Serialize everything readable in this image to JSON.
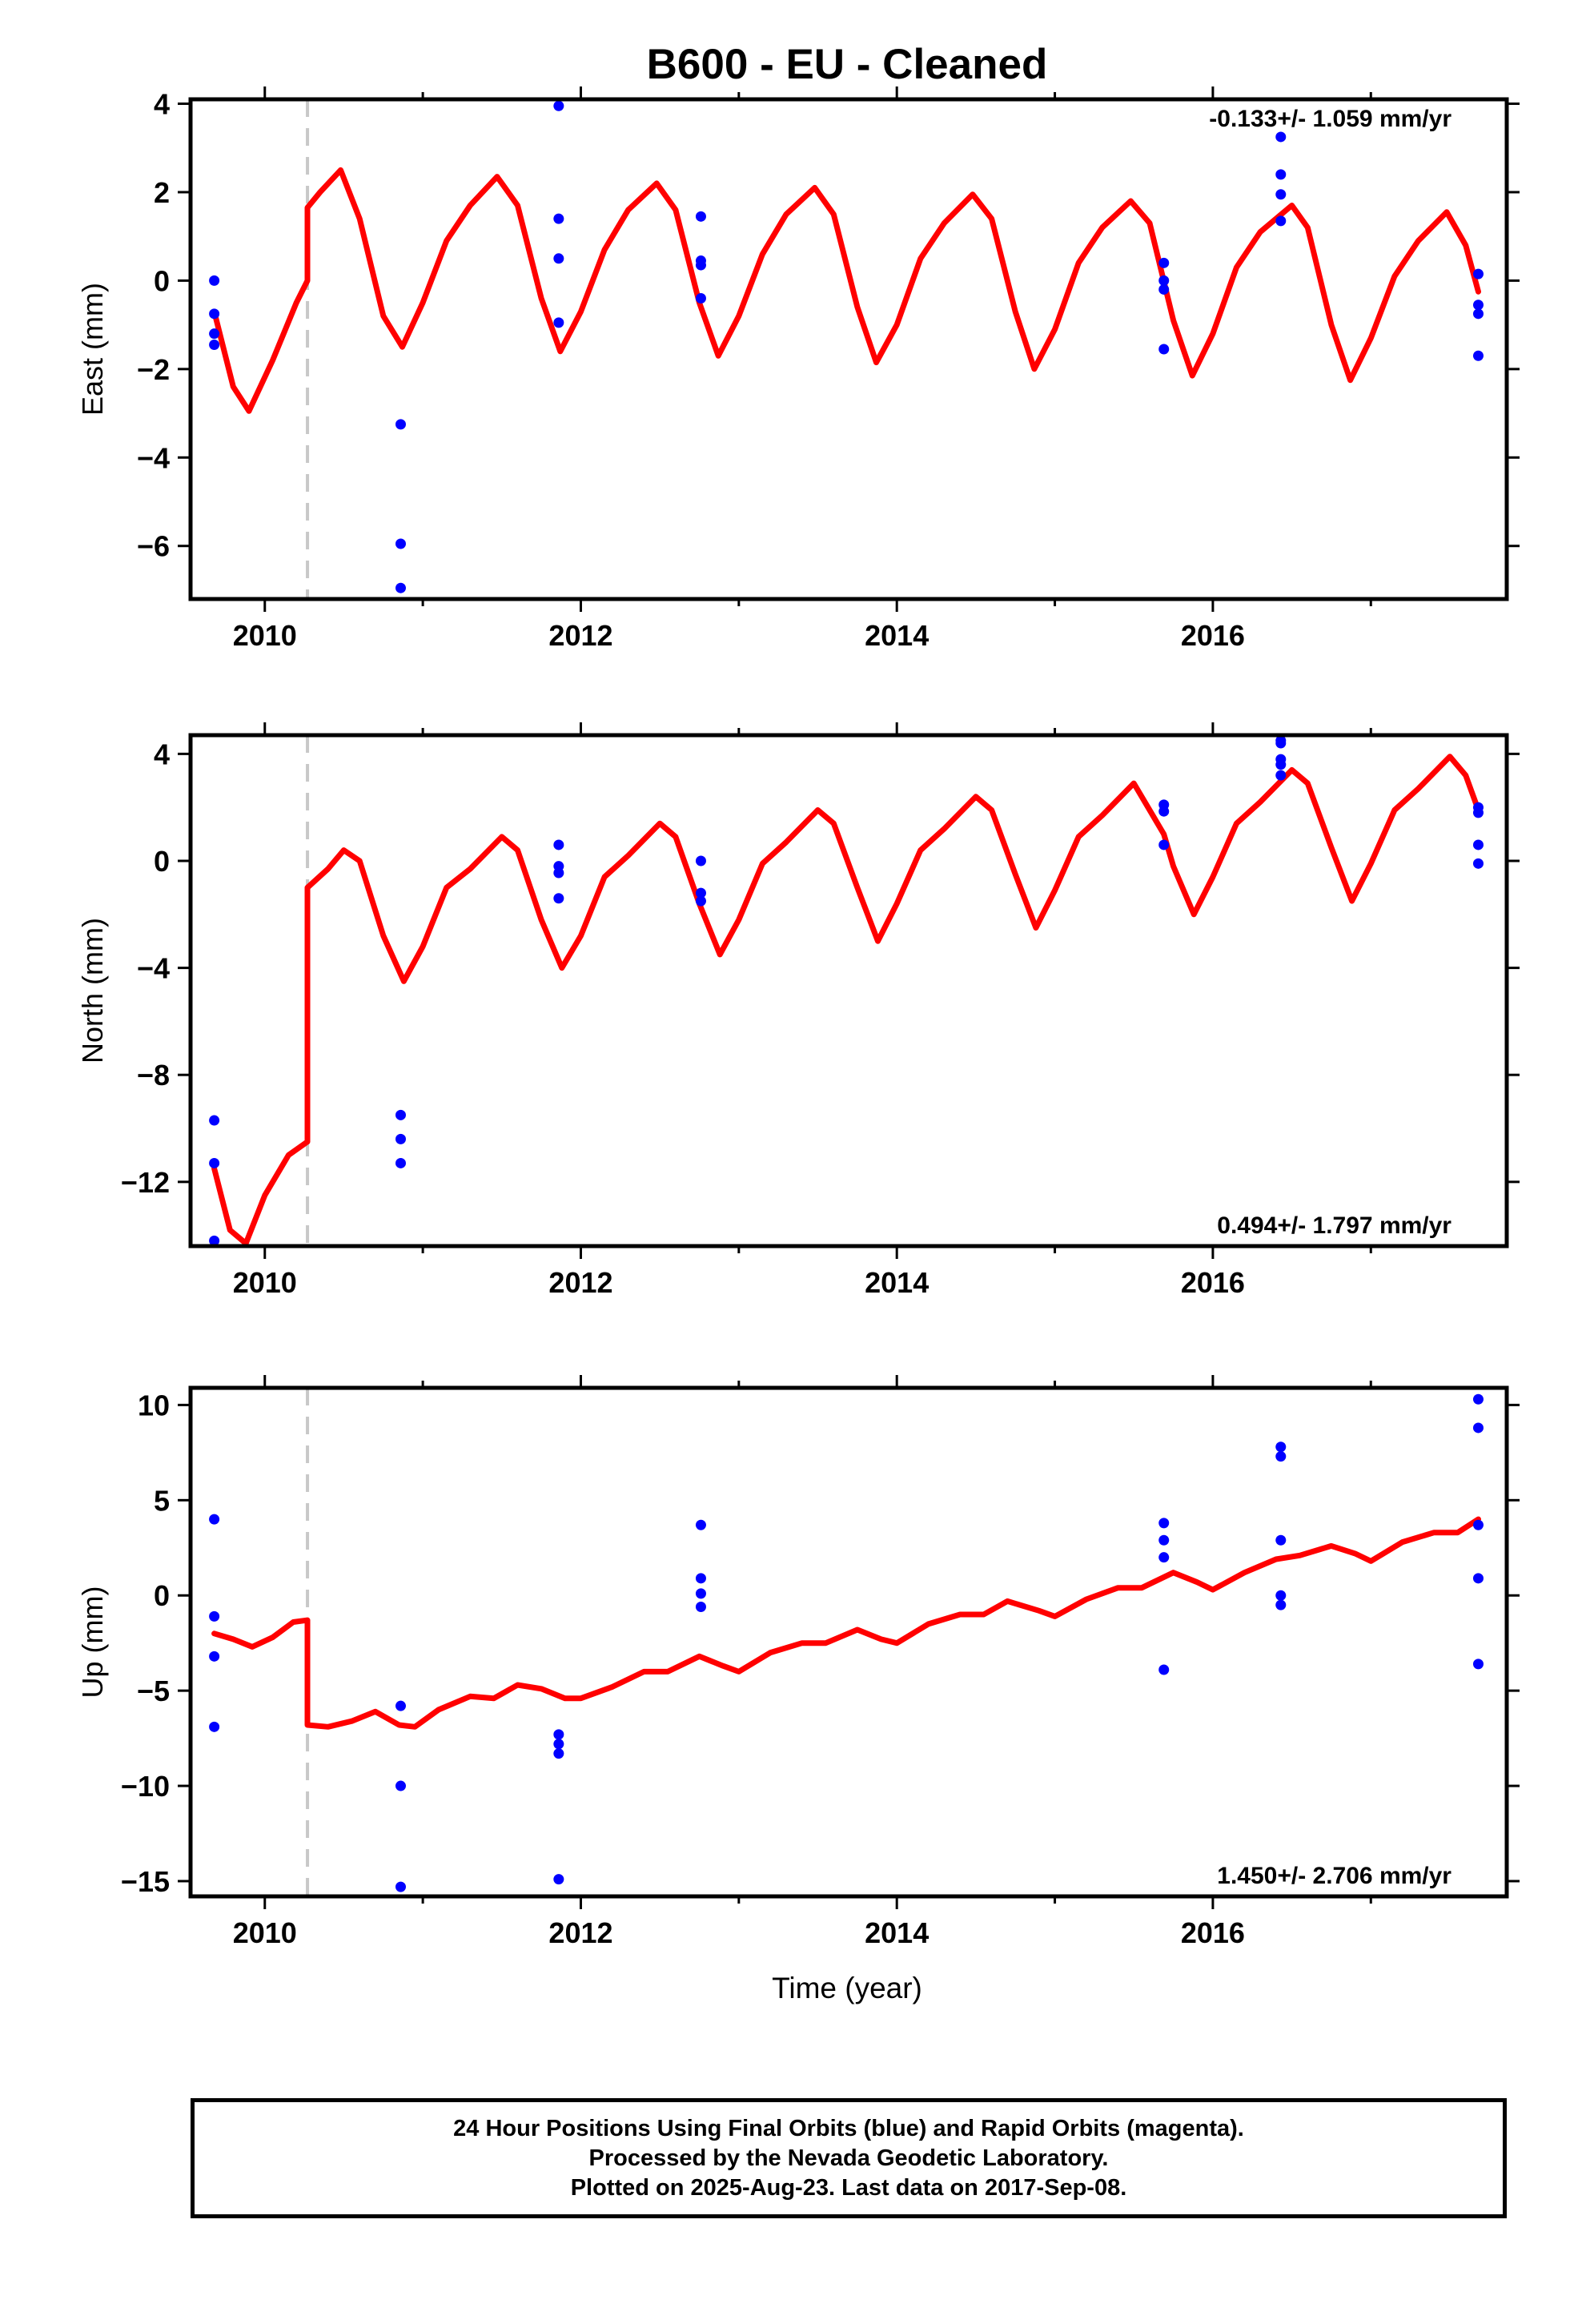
{
  "figure": {
    "title": "B600  - EU - Cleaned",
    "xlabel": "Time (year)",
    "footer": [
      "24 Hour Positions Using Final Orbits (blue) and Rapid Orbits (magenta).",
      "Processed by the Nevada Geodetic Laboratory.",
      "Plotted on 2025-Aug-23. Last data on 2017-Sep-08."
    ],
    "colors": {
      "data": "#0000ff",
      "model": "#ff0000",
      "step_line": "#c8c8c8",
      "axes": "#000000"
    }
  },
  "chart_data": [
    {
      "type": "scatter",
      "ylabel": "East (mm)",
      "rate_label": "-0.133+/- 1.059 mm/yr",
      "rate_position": "top-right",
      "xlim": [
        2009.53,
        2017.86
      ],
      "ylim": [
        -7.2,
        4.1
      ],
      "xticks": [
        2010,
        2012,
        2014,
        2016
      ],
      "yticks": [
        4,
        2,
        0,
        -2,
        -4,
        -6
      ],
      "step_epoch": 2010.27,
      "series": [
        {
          "role": "observations",
          "color": "#0000ff",
          "points": [
            [
              2009.68,
              0.0
            ],
            [
              2009.68,
              -0.75
            ],
            [
              2009.68,
              -1.2
            ],
            [
              2009.68,
              -1.45
            ],
            [
              2010.86,
              -3.25
            ],
            [
              2010.86,
              -5.95
            ],
            [
              2010.86,
              -6.95
            ],
            [
              2011.86,
              3.95
            ],
            [
              2011.86,
              1.4
            ],
            [
              2011.86,
              0.5
            ],
            [
              2011.86,
              -0.95
            ],
            [
              2012.76,
              1.45
            ],
            [
              2012.76,
              0.45
            ],
            [
              2012.76,
              0.35
            ],
            [
              2012.76,
              -0.4
            ],
            [
              2015.69,
              0.4
            ],
            [
              2015.69,
              0.0
            ],
            [
              2015.69,
              -0.2
            ],
            [
              2015.69,
              -1.55
            ],
            [
              2016.43,
              3.25
            ],
            [
              2016.43,
              2.4
            ],
            [
              2016.43,
              1.95
            ],
            [
              2016.43,
              1.35
            ],
            [
              2017.68,
              0.15
            ],
            [
              2017.68,
              -0.55
            ],
            [
              2017.68,
              -0.75
            ],
            [
              2017.68,
              -1.7
            ]
          ]
        },
        {
          "role": "model",
          "color": "#ff0000",
          "x": [
            2009.68,
            2009.8,
            2009.9,
            2010.05,
            2010.2,
            2010.27,
            2010.27,
            2010.35,
            2010.48,
            2010.6,
            2010.75,
            2010.87,
            2011.0,
            2011.15,
            2011.3,
            2011.47,
            2011.6,
            2011.75,
            2011.87,
            2012.0,
            2012.15,
            2012.3,
            2012.48,
            2012.6,
            2012.75,
            2012.87,
            2013.0,
            2013.15,
            2013.3,
            2013.48,
            2013.6,
            2013.75,
            2013.87,
            2014.0,
            2014.15,
            2014.3,
            2014.48,
            2014.6,
            2014.75,
            2014.87,
            2015.0,
            2015.15,
            2015.3,
            2015.48,
            2015.6,
            2015.75,
            2015.87,
            2016.0,
            2016.15,
            2016.3,
            2016.5,
            2016.6,
            2016.75,
            2016.87,
            2017.0,
            2017.15,
            2017.3,
            2017.48,
            2017.6,
            2017.68
          ],
          "y": [
            -0.7,
            -2.4,
            -2.95,
            -1.8,
            -0.5,
            0.0,
            1.65,
            2.0,
            2.5,
            1.4,
            -0.8,
            -1.5,
            -0.5,
            0.9,
            1.7,
            2.35,
            1.7,
            -0.4,
            -1.6,
            -0.7,
            0.7,
            1.6,
            2.2,
            1.6,
            -0.5,
            -1.7,
            -0.8,
            0.6,
            1.5,
            2.1,
            1.5,
            -0.6,
            -1.85,
            -1.0,
            0.5,
            1.3,
            1.95,
            1.4,
            -0.7,
            -2.0,
            -1.1,
            0.4,
            1.2,
            1.8,
            1.3,
            -0.9,
            -2.15,
            -1.2,
            0.3,
            1.1,
            1.7,
            1.2,
            -1.0,
            -2.25,
            -1.3,
            0.1,
            0.9,
            1.55,
            0.8,
            -0.25
          ]
        }
      ]
    },
    {
      "type": "scatter",
      "ylabel": "North (mm)",
      "rate_label": "0.494+/- 1.797 mm/yr",
      "rate_position": "bottom-right",
      "xlim": [
        2009.53,
        2017.86
      ],
      "ylim": [
        -14.4,
        4.7
      ],
      "xticks": [
        2010,
        2012,
        2014,
        2016
      ],
      "yticks": [
        4,
        0,
        -4,
        -8,
        -12
      ],
      "step_epoch": 2010.27,
      "series": [
        {
          "role": "observations",
          "color": "#0000ff",
          "points": [
            [
              2009.68,
              -9.7
            ],
            [
              2009.68,
              -11.3
            ],
            [
              2009.68,
              -14.2
            ],
            [
              2010.86,
              -9.5
            ],
            [
              2010.86,
              -10.4
            ],
            [
              2010.86,
              -11.3
            ],
            [
              2011.86,
              0.6
            ],
            [
              2011.86,
              -0.2
            ],
            [
              2011.86,
              -0.45
            ],
            [
              2011.86,
              -1.4
            ],
            [
              2012.76,
              0.0
            ],
            [
              2012.76,
              -1.2
            ],
            [
              2012.76,
              -1.5
            ],
            [
              2015.69,
              2.1
            ],
            [
              2015.69,
              1.85
            ],
            [
              2015.69,
              0.6
            ],
            [
              2016.43,
              4.5
            ],
            [
              2016.43,
              4.4
            ],
            [
              2016.43,
              3.8
            ],
            [
              2016.43,
              3.6
            ],
            [
              2016.43,
              3.2
            ],
            [
              2017.68,
              2.0
            ],
            [
              2017.68,
              1.8
            ],
            [
              2017.68,
              0.6
            ],
            [
              2017.68,
              -0.1
            ]
          ]
        },
        {
          "role": "model",
          "color": "#ff0000",
          "x": [
            2009.68,
            2009.78,
            2009.88,
            2010.0,
            2010.15,
            2010.27,
            2010.27,
            2010.27,
            2010.4,
            2010.5,
            2010.6,
            2010.75,
            2010.88,
            2011.0,
            2011.15,
            2011.3,
            2011.5,
            2011.6,
            2011.75,
            2011.88,
            2012.0,
            2012.15,
            2012.3,
            2012.5,
            2012.6,
            2012.75,
            2012.88,
            2013.0,
            2013.15,
            2013.3,
            2013.5,
            2013.6,
            2013.75,
            2013.88,
            2014.0,
            2014.15,
            2014.3,
            2014.5,
            2014.6,
            2014.75,
            2014.88,
            2015.0,
            2015.15,
            2015.3,
            2015.5,
            2015.69,
            2015.75,
            2015.88,
            2016.0,
            2016.15,
            2016.3,
            2016.5,
            2016.6,
            2016.75,
            2016.88,
            2017.0,
            2017.15,
            2017.3,
            2017.5,
            2017.6,
            2017.68
          ],
          "y": [
            -11.5,
            -13.8,
            -14.3,
            -12.5,
            -11.0,
            -10.5,
            -2.5,
            -1.0,
            -0.3,
            0.4,
            0.0,
            -2.8,
            -4.5,
            -3.2,
            -1.0,
            -0.3,
            0.9,
            0.4,
            -2.2,
            -4.0,
            -2.8,
            -0.6,
            0.2,
            1.4,
            0.9,
            -1.6,
            -3.5,
            -2.2,
            -0.1,
            0.7,
            1.9,
            1.4,
            -1.0,
            -3.0,
            -1.6,
            0.4,
            1.2,
            2.4,
            1.9,
            -0.5,
            -2.5,
            -1.1,
            0.9,
            1.7,
            2.9,
            1.0,
            -0.2,
            -2.0,
            -0.6,
            1.4,
            2.2,
            3.4,
            2.9,
            0.5,
            -1.5,
            -0.1,
            1.9,
            2.7,
            3.9,
            3.2,
            1.9
          ]
        }
      ]
    },
    {
      "type": "scatter",
      "ylabel": "Up (mm)",
      "rate_label": "1.450+/- 2.706 mm/yr",
      "rate_position": "bottom-right",
      "xlim": [
        2009.53,
        2017.86
      ],
      "ylim": [
        -15.8,
        10.9
      ],
      "xticks": [
        2010,
        2012,
        2014,
        2016
      ],
      "yticks": [
        10,
        5,
        0,
        -5,
        -10,
        -15
      ],
      "step_epoch": 2010.27,
      "series": [
        {
          "role": "observations",
          "color": "#0000ff",
          "points": [
            [
              2009.68,
              4.0
            ],
            [
              2009.68,
              -1.1
            ],
            [
              2009.68,
              -3.2
            ],
            [
              2009.68,
              -6.9
            ],
            [
              2010.86,
              -5.8
            ],
            [
              2010.86,
              -10.0
            ],
            [
              2010.86,
              -15.3
            ],
            [
              2011.86,
              -7.3
            ],
            [
              2011.86,
              -7.8
            ],
            [
              2011.86,
              -8.3
            ],
            [
              2011.86,
              -14.9
            ],
            [
              2012.76,
              3.7
            ],
            [
              2012.76,
              0.9
            ],
            [
              2012.76,
              0.1
            ],
            [
              2012.76,
              -0.6
            ],
            [
              2015.69,
              3.8
            ],
            [
              2015.69,
              2.9
            ],
            [
              2015.69,
              2.0
            ],
            [
              2015.69,
              -3.9
            ],
            [
              2016.43,
              7.8
            ],
            [
              2016.43,
              7.3
            ],
            [
              2016.43,
              2.9
            ],
            [
              2016.43,
              0.0
            ],
            [
              2016.43,
              -0.5
            ],
            [
              2017.68,
              10.3
            ],
            [
              2017.68,
              8.8
            ],
            [
              2017.68,
              3.7
            ],
            [
              2017.68,
              0.9
            ],
            [
              2017.68,
              -3.6
            ]
          ]
        },
        {
          "role": "model",
          "color": "#ff0000",
          "x": [
            2009.68,
            2009.8,
            2009.92,
            2010.05,
            2010.18,
            2010.27,
            2010.27,
            2010.4,
            2010.55,
            2010.7,
            2010.85,
            2010.95,
            2011.1,
            2011.3,
            2011.45,
            2011.6,
            2011.75,
            2011.9,
            2012.0,
            2012.2,
            2012.4,
            2012.55,
            2012.75,
            2012.9,
            2013.0,
            2013.2,
            2013.4,
            2013.55,
            2013.75,
            2013.9,
            2014.0,
            2014.2,
            2014.4,
            2014.55,
            2014.7,
            2014.9,
            2015.0,
            2015.2,
            2015.4,
            2015.55,
            2015.75,
            2015.9,
            2016.0,
            2016.2,
            2016.4,
            2016.55,
            2016.75,
            2016.9,
            2017.0,
            2017.2,
            2017.4,
            2017.55,
            2017.68
          ],
          "y": [
            -2.0,
            -2.3,
            -2.7,
            -2.2,
            -1.4,
            -1.3,
            -6.8,
            -6.9,
            -6.6,
            -6.1,
            -6.8,
            -6.9,
            -6.0,
            -5.3,
            -5.4,
            -4.7,
            -4.9,
            -5.4,
            -5.4,
            -4.8,
            -4.0,
            -4.0,
            -3.2,
            -3.7,
            -4.0,
            -3.0,
            -2.5,
            -2.5,
            -1.8,
            -2.3,
            -2.5,
            -1.5,
            -1.0,
            -1.0,
            -0.3,
            -0.8,
            -1.1,
            -0.2,
            0.4,
            0.4,
            1.2,
            0.7,
            0.3,
            1.2,
            1.9,
            2.1,
            2.6,
            2.2,
            1.8,
            2.8,
            3.3,
            3.3,
            4.0
          ]
        }
      ]
    }
  ]
}
